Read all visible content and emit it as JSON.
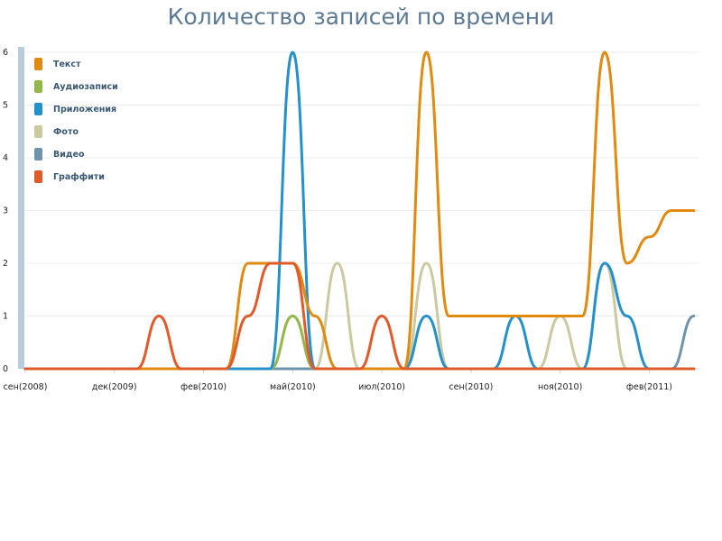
{
  "title": "Количество записей по времени",
  "chart_data": {
    "type": "line",
    "title": "Количество записей по времени",
    "x": [
      0,
      1,
      2,
      3,
      4,
      5,
      6,
      7,
      8,
      9,
      10,
      11,
      12,
      13,
      14,
      15,
      16,
      17,
      18,
      19,
      20,
      21,
      22,
      23,
      24,
      25,
      26,
      27,
      28,
      29,
      30
    ],
    "xticks": [
      {
        "pos": 0,
        "label": "сен(2008)"
      },
      {
        "pos": 4,
        "label": "дек(2009)"
      },
      {
        "pos": 8,
        "label": "фев(2010)"
      },
      {
        "pos": 12,
        "label": "май(2010)"
      },
      {
        "pos": 16,
        "label": "июл(2010)"
      },
      {
        "pos": 20,
        "label": "сен(2010)"
      },
      {
        "pos": 24,
        "label": "ноя(2010)"
      },
      {
        "pos": 28,
        "label": "фев(2011)"
      }
    ],
    "yticks": [
      0,
      1,
      2,
      3,
      4,
      5,
      6
    ],
    "ylim": [
      0,
      6
    ],
    "xlim": [
      0,
      30.25
    ],
    "grid": true,
    "legend_position": "top-left",
    "series": [
      {
        "name": "Текст",
        "color": "#e08a10",
        "values": [
          0,
          0,
          0,
          0,
          0,
          0,
          0,
          0,
          0,
          0,
          2,
          2,
          2,
          1,
          0,
          0,
          0,
          0,
          6,
          1,
          1,
          1,
          1,
          1,
          1,
          1,
          6,
          2,
          2.5,
          3,
          3
        ]
      },
      {
        "name": "Аудиозаписи",
        "color": "#94b84a",
        "values": [
          0,
          0,
          0,
          0,
          0,
          0,
          0,
          0,
          0,
          0,
          0,
          0,
          1,
          0,
          0,
          0,
          0,
          0,
          0,
          0,
          0,
          0,
          0,
          0,
          0,
          0,
          0,
          0,
          0,
          0,
          0
        ]
      },
      {
        "name": "Приложения",
        "color": "#2591cc",
        "values": [
          0,
          0,
          0,
          0,
          0,
          0,
          0,
          0,
          0,
          0,
          0,
          0,
          6,
          0,
          0,
          0,
          0,
          0,
          1,
          0,
          0,
          0,
          1,
          0,
          0,
          0,
          2,
          1,
          0,
          0,
          0
        ]
      },
      {
        "name": "Фото",
        "color": "#cbc9a0",
        "values": [
          0,
          0,
          0,
          0,
          0,
          0,
          0,
          0,
          0,
          0,
          0,
          0,
          1,
          0,
          2,
          0,
          0,
          0,
          2,
          0,
          0,
          0,
          0,
          0,
          1,
          0,
          2,
          0,
          0,
          0,
          0
        ]
      },
      {
        "name": "Видео",
        "color": "#6e93ad",
        "values": [
          0,
          0,
          0,
          0,
          0,
          0,
          0,
          0,
          0,
          0,
          0,
          0,
          0,
          0,
          0,
          0,
          0,
          0,
          0,
          0,
          0,
          0,
          0,
          0,
          0,
          0,
          0,
          0,
          0,
          0,
          1
        ]
      },
      {
        "name": "Граффити",
        "color": "#e05a2a",
        "values": [
          0,
          0,
          0,
          0,
          0,
          0,
          1,
          0,
          0,
          0,
          1,
          2,
          2,
          0,
          0,
          0,
          1,
          0,
          0,
          0,
          0,
          0,
          0,
          0,
          0,
          0,
          0,
          0,
          0,
          0,
          0
        ]
      }
    ]
  }
}
